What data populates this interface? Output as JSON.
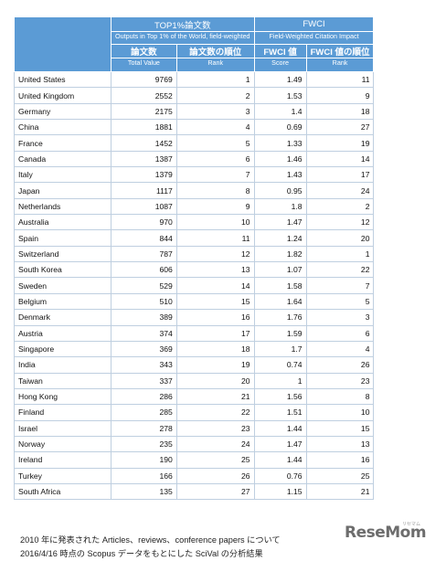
{
  "header": {
    "group1_title": "TOP1%論文数",
    "group1_subtitle": "Outputs in Top 1% of the World, field-weighted",
    "group2_title": "FWCI",
    "group2_subtitle": "Field-Weighted Citation Impact",
    "col_papers": "論文数",
    "col_papers_sub": "Total Value",
    "col_papers_rank": "論文数の順位",
    "col_papers_rank_sub": "Rank",
    "col_fwci": "FWCI 値",
    "col_fwci_sub": "Score",
    "col_fwci_rank": "FWCI 値の順位",
    "col_fwci_rank_sub": "Rank"
  },
  "rows": [
    {
      "country": "United States",
      "total": "9769",
      "rank": "1",
      "fwci": "1.49",
      "fwci_rank": "11"
    },
    {
      "country": "United Kingdom",
      "total": "2552",
      "rank": "2",
      "fwci": "1.53",
      "fwci_rank": "9"
    },
    {
      "country": "Germany",
      "total": "2175",
      "rank": "3",
      "fwci": "1.4",
      "fwci_rank": "18"
    },
    {
      "country": "China",
      "total": "1881",
      "rank": "4",
      "fwci": "0.69",
      "fwci_rank": "27"
    },
    {
      "country": "France",
      "total": "1452",
      "rank": "5",
      "fwci": "1.33",
      "fwci_rank": "19"
    },
    {
      "country": "Canada",
      "total": "1387",
      "rank": "6",
      "fwci": "1.46",
      "fwci_rank": "14"
    },
    {
      "country": "Italy",
      "total": "1379",
      "rank": "7",
      "fwci": "1.43",
      "fwci_rank": "17"
    },
    {
      "country": "Japan",
      "total": "1117",
      "rank": "8",
      "fwci": "0.95",
      "fwci_rank": "24"
    },
    {
      "country": "Netherlands",
      "total": "1087",
      "rank": "9",
      "fwci": "1.8",
      "fwci_rank": "2"
    },
    {
      "country": "Australia",
      "total": "970",
      "rank": "10",
      "fwci": "1.47",
      "fwci_rank": "12"
    },
    {
      "country": "Spain",
      "total": "844",
      "rank": "11",
      "fwci": "1.24",
      "fwci_rank": "20"
    },
    {
      "country": "Switzerland",
      "total": "787",
      "rank": "12",
      "fwci": "1.82",
      "fwci_rank": "1"
    },
    {
      "country": "South Korea",
      "total": "606",
      "rank": "13",
      "fwci": "1.07",
      "fwci_rank": "22"
    },
    {
      "country": "Sweden",
      "total": "529",
      "rank": "14",
      "fwci": "1.58",
      "fwci_rank": "7"
    },
    {
      "country": "Belgium",
      "total": "510",
      "rank": "15",
      "fwci": "1.64",
      "fwci_rank": "5"
    },
    {
      "country": "Denmark",
      "total": "389",
      "rank": "16",
      "fwci": "1.76",
      "fwci_rank": "3"
    },
    {
      "country": "Austria",
      "total": "374",
      "rank": "17",
      "fwci": "1.59",
      "fwci_rank": "6"
    },
    {
      "country": "Singapore",
      "total": "369",
      "rank": "18",
      "fwci": "1.7",
      "fwci_rank": "4"
    },
    {
      "country": "India",
      "total": "343",
      "rank": "19",
      "fwci": "0.74",
      "fwci_rank": "26"
    },
    {
      "country": "Taiwan",
      "total": "337",
      "rank": "20",
      "fwci": "1",
      "fwci_rank": "23"
    },
    {
      "country": "Hong Kong",
      "total": "286",
      "rank": "21",
      "fwci": "1.56",
      "fwci_rank": "8"
    },
    {
      "country": "Finland",
      "total": "285",
      "rank": "22",
      "fwci": "1.51",
      "fwci_rank": "10"
    },
    {
      "country": "Israel",
      "total": "278",
      "rank": "23",
      "fwci": "1.44",
      "fwci_rank": "15"
    },
    {
      "country": "Norway",
      "total": "235",
      "rank": "24",
      "fwci": "1.47",
      "fwci_rank": "13"
    },
    {
      "country": "Ireland",
      "total": "190",
      "rank": "25",
      "fwci": "1.44",
      "fwci_rank": "16"
    },
    {
      "country": "Turkey",
      "total": "166",
      "rank": "26",
      "fwci": "0.76",
      "fwci_rank": "25"
    },
    {
      "country": "South Africa",
      "total": "135",
      "rank": "27",
      "fwci": "1.15",
      "fwci_rank": "21"
    }
  ],
  "footnote": {
    "line1": "2010 年に発表された Articles、reviews、conference papers について",
    "line2": "2016/4/16 時点の Scopus データをもとにした SciVal の分析結果"
  },
  "logo": {
    "text": "ReseMom",
    "small": "リセマム"
  },
  "colors": {
    "header_bg": "#5b9bd5",
    "border": "#bfcfe0"
  }
}
